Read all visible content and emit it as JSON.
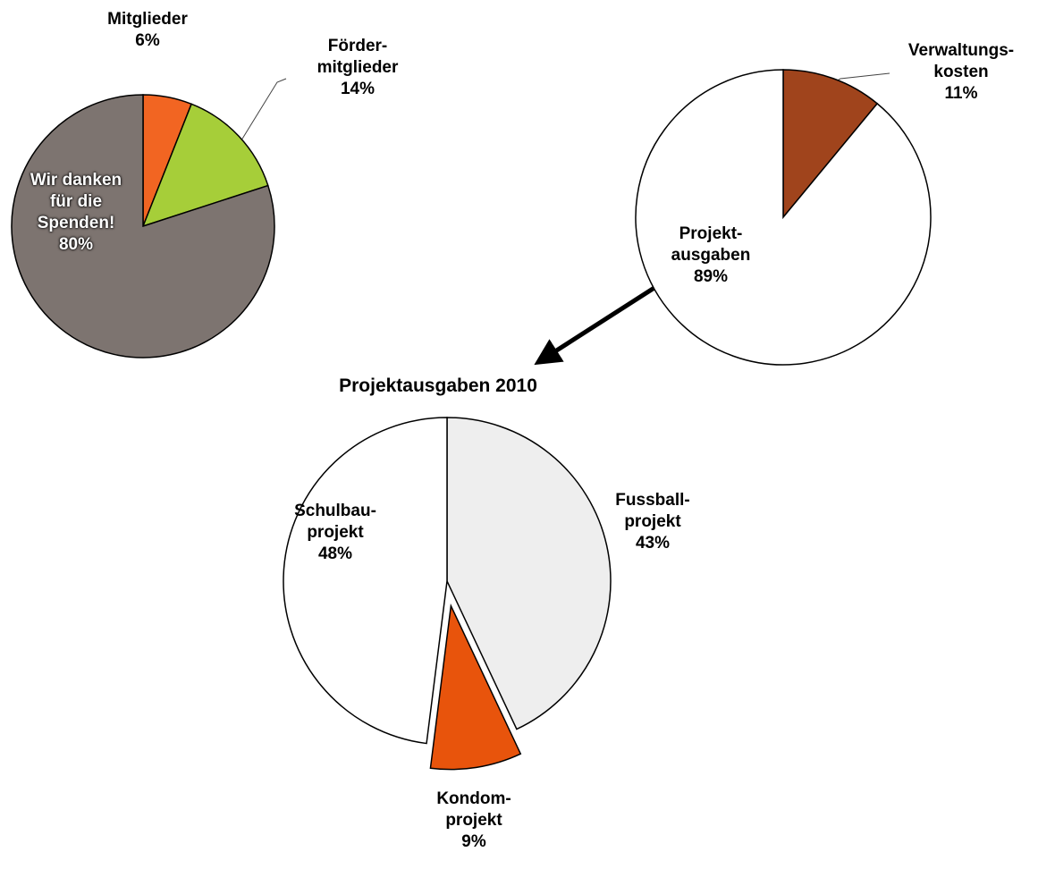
{
  "chart_data": [
    {
      "type": "pie",
      "categories": [
        "Mitglieder",
        "Förder-\nmitglieder",
        "Wir danken\nfür die\nSpenden!"
      ],
      "values": [
        6,
        14,
        80
      ],
      "value_labels": [
        "6%",
        "14%",
        "80%"
      ],
      "colors": [
        "#f26522",
        "#a6ce39",
        "#7d7470"
      ]
    },
    {
      "type": "pie",
      "categories": [
        "Verwaltungs-\nkosten",
        "Projekt-\nausgaben"
      ],
      "values": [
        11,
        89
      ],
      "value_labels": [
        "11%",
        "89%"
      ],
      "colors": [
        "#a0441c",
        "#ffffff"
      ]
    },
    {
      "type": "pie",
      "title": "Projektausgaben 2010",
      "categories": [
        "Fussball-\nprojekt",
        "Kondom-\nprojekt",
        "Schulbau-\nprojekt"
      ],
      "values": [
        43,
        9,
        48
      ],
      "value_labels": [
        "43%",
        "9%",
        "48%"
      ],
      "colors": [
        "#eeeeee",
        "#e8540c",
        "#ffffff"
      ],
      "explode": [
        false,
        true,
        false
      ]
    }
  ]
}
